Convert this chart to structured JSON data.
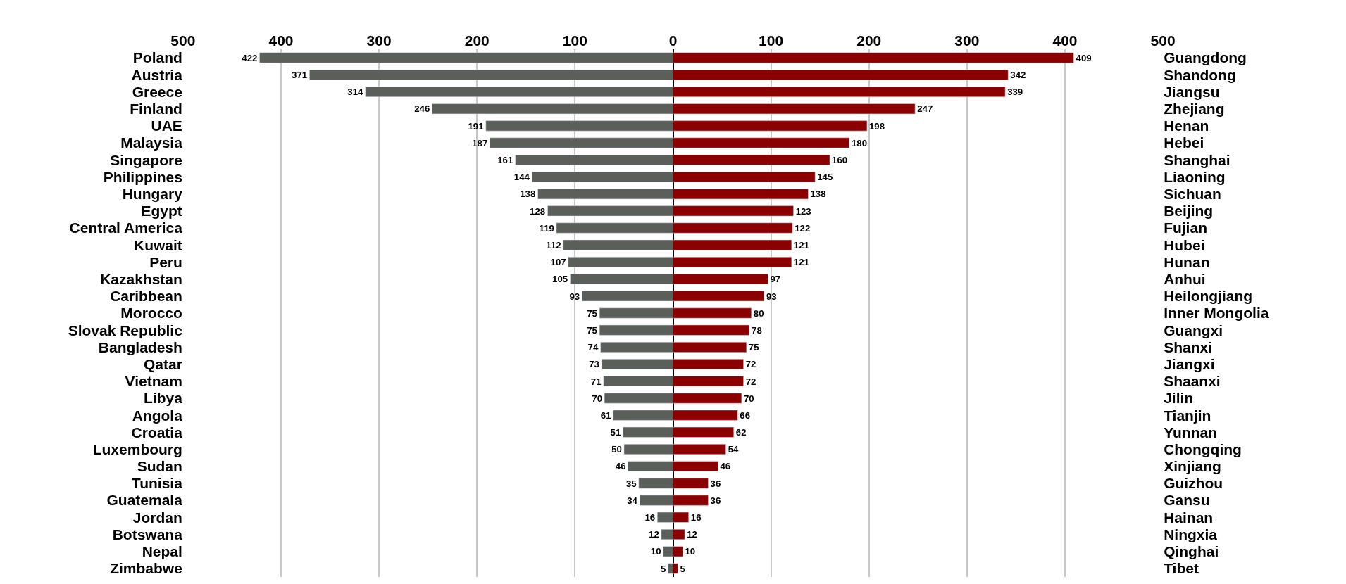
{
  "chart_data": [
    {
      "type": "bar",
      "orientation": "horizontal",
      "categories": [
        "Poland",
        "Austria",
        "Greece",
        "Finland",
        "UAE",
        "Malaysia",
        "Singapore",
        "Philippines",
        "Hungary",
        "Egypt",
        "Central America",
        "Kuwait",
        "Peru",
        "Kazakhstan",
        "Caribbean",
        "Morocco",
        "Slovak Republic",
        "Bangladesh",
        "Qatar",
        "Vietnam",
        "Libya",
        "Angola",
        "Croatia",
        "Luxembourg",
        "Sudan",
        "Tunisia",
        "Guatemala",
        "Jordan",
        "Botswana",
        "Nepal",
        "Zimbabwe"
      ],
      "values": [
        422,
        371,
        314,
        246,
        191,
        187,
        161,
        144,
        138,
        128,
        119,
        112,
        107,
        105,
        93,
        75,
        75,
        74,
        73,
        71,
        70,
        61,
        51,
        50,
        46,
        35,
        34,
        16,
        12,
        10,
        5
      ],
      "color": "#5a5f5a",
      "xlim": [
        500,
        0
      ],
      "xticks": [
        500,
        400,
        300,
        200,
        100,
        {
          "value": 0,
          "label": null
        }
      ],
      "grid": "x",
      "data_labels": true
    },
    {
      "type": "bar",
      "orientation": "horizontal",
      "categories": [
        "Guangdong",
        "Shandong",
        "Jiangsu",
        "Zhejiang",
        "Henan",
        "Hebei",
        "Shanghai",
        "Liaoning",
        "Sichuan",
        "Beijing",
        "Fujian",
        "Hubei",
        "Hunan",
        "Anhui",
        "Heilongjiang",
        "Inner Mongolia",
        "Guangxi",
        "Shanxi",
        "Jiangxi",
        "Shaanxi",
        "Jilin",
        "Tianjin",
        "Yunnan",
        "Chongqing",
        "Xinjiang",
        "Guizhou",
        "Gansu",
        "Hainan",
        "Ningxia",
        "Qinghai",
        "Tibet"
      ],
      "values": [
        409,
        342,
        339,
        247,
        198,
        180,
        160,
        145,
        138,
        123,
        122,
        121,
        121,
        97,
        93,
        80,
        78,
        75,
        72,
        72,
        70,
        66,
        62,
        54,
        46,
        36,
        36,
        16,
        12,
        10,
        5
      ],
      "color": "#8b0000",
      "xlim": [
        0,
        500
      ],
      "xticks": [
        0,
        100,
        200,
        300,
        400,
        500
      ],
      "grid": "x",
      "data_labels": true
    }
  ]
}
